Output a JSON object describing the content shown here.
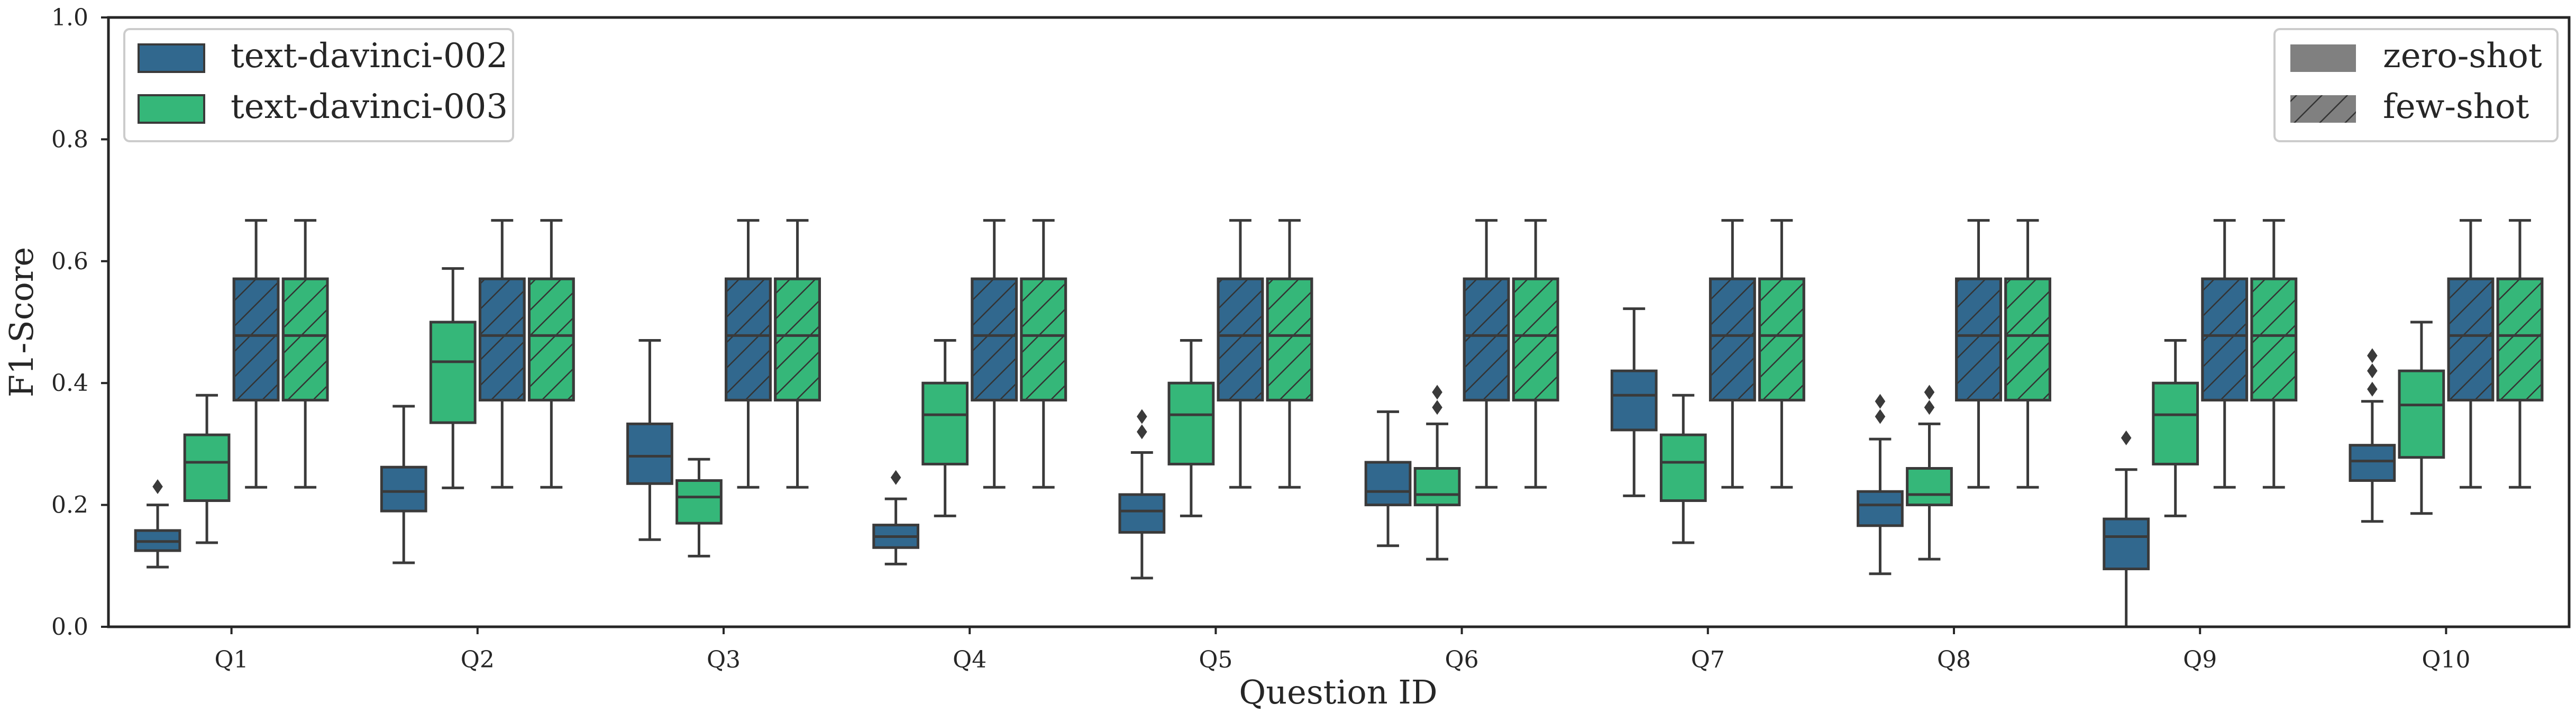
{
  "chart_data": {
    "type": "boxplot",
    "xlabel": "Question ID",
    "ylabel": "F1-Score",
    "ylim": [
      0,
      1.0
    ],
    "yticks": [
      "0.0",
      "0.2",
      "0.4",
      "0.6",
      "0.8",
      "1.0"
    ],
    "categories": [
      "Q1",
      "Q2",
      "Q3",
      "Q4",
      "Q5",
      "Q6",
      "Q7",
      "Q8",
      "Q9",
      "Q10"
    ],
    "grid": false,
    "legend_models": {
      "placement": "top-left",
      "entries": [
        {
          "label": "text-davinci-002",
          "color": "#31688e"
        },
        {
          "label": "text-davinci-003",
          "color": "#35b779"
        }
      ]
    },
    "legend_modes": {
      "placement": "top-right",
      "entries": [
        {
          "label": "zero-shot",
          "pattern": "solid"
        },
        {
          "label": "few-shot",
          "pattern": "hatched"
        }
      ]
    },
    "series": [
      {
        "name": "text-davinci-002",
        "mode": "zero-shot",
        "color": "#31688e",
        "hatched": false,
        "boxes": [
          {
            "whislo": 0.098,
            "q1": 0.125,
            "med": 0.14,
            "q3": 0.158,
            "whishi": 0.2,
            "fliers": [
              0.23
            ]
          },
          {
            "whislo": 0.105,
            "q1": 0.19,
            "med": 0.222,
            "q3": 0.262,
            "whishi": 0.362,
            "fliers": []
          },
          {
            "whislo": 0.143,
            "q1": 0.235,
            "med": 0.28,
            "q3": 0.333,
            "whishi": 0.47,
            "fliers": []
          },
          {
            "whislo": 0.103,
            "q1": 0.13,
            "med": 0.148,
            "q3": 0.167,
            "whishi": 0.21,
            "fliers": [
              0.245
            ]
          },
          {
            "whislo": 0.08,
            "q1": 0.155,
            "med": 0.19,
            "q3": 0.217,
            "whishi": 0.286,
            "fliers": [
              0.32,
              0.345
            ]
          },
          {
            "whislo": 0.133,
            "q1": 0.2,
            "med": 0.222,
            "q3": 0.27,
            "whishi": 0.353,
            "fliers": []
          },
          {
            "whislo": 0.215,
            "q1": 0.323,
            "med": 0.38,
            "q3": 0.42,
            "whishi": 0.522,
            "fliers": []
          },
          {
            "whislo": 0.087,
            "q1": 0.166,
            "med": 0.2,
            "q3": 0.222,
            "whishi": 0.308,
            "fliers": [
              0.345,
              0.37
            ]
          },
          {
            "whislo": 0.0,
            "q1": 0.095,
            "med": 0.148,
            "q3": 0.177,
            "whishi": 0.258,
            "fliers": [
              0.31
            ]
          },
          {
            "whislo": 0.173,
            "q1": 0.24,
            "med": 0.272,
            "q3": 0.298,
            "whishi": 0.37,
            "fliers": [
              0.39,
              0.42,
              0.445
            ]
          }
        ]
      },
      {
        "name": "text-davinci-003",
        "mode": "zero-shot",
        "color": "#35b779",
        "hatched": false,
        "boxes": [
          {
            "whislo": 0.138,
            "q1": 0.207,
            "med": 0.27,
            "q3": 0.315,
            "whishi": 0.38,
            "fliers": []
          },
          {
            "whislo": 0.228,
            "q1": 0.335,
            "med": 0.435,
            "q3": 0.5,
            "whishi": 0.588,
            "fliers": []
          },
          {
            "whislo": 0.116,
            "q1": 0.17,
            "med": 0.213,
            "q3": 0.24,
            "whishi": 0.275,
            "fliers": []
          },
          {
            "whislo": 0.182,
            "q1": 0.267,
            "med": 0.348,
            "q3": 0.4,
            "whishi": 0.47,
            "fliers": []
          },
          {
            "whislo": 0.182,
            "q1": 0.267,
            "med": 0.348,
            "q3": 0.4,
            "whishi": 0.47,
            "fliers": []
          },
          {
            "whislo": 0.111,
            "q1": 0.2,
            "med": 0.217,
            "q3": 0.26,
            "whishi": 0.333,
            "fliers": [
              0.36,
              0.385
            ]
          },
          {
            "whislo": 0.138,
            "q1": 0.207,
            "med": 0.27,
            "q3": 0.315,
            "whishi": 0.38,
            "fliers": []
          },
          {
            "whislo": 0.111,
            "q1": 0.2,
            "med": 0.217,
            "q3": 0.26,
            "whishi": 0.333,
            "fliers": [
              0.36,
              0.385
            ]
          },
          {
            "whislo": 0.182,
            "q1": 0.267,
            "med": 0.348,
            "q3": 0.4,
            "whishi": 0.47,
            "fliers": []
          },
          {
            "whislo": 0.186,
            "q1": 0.278,
            "med": 0.364,
            "q3": 0.42,
            "whishi": 0.5,
            "fliers": []
          }
        ]
      },
      {
        "name": "text-davinci-002",
        "mode": "few-shot",
        "color": "#31688e",
        "hatched": true,
        "boxes": [
          {
            "whislo": 0.229,
            "q1": 0.372,
            "med": 0.478,
            "q3": 0.571,
            "whishi": 0.667,
            "fliers": []
          },
          {
            "whislo": 0.229,
            "q1": 0.372,
            "med": 0.478,
            "q3": 0.571,
            "whishi": 0.667,
            "fliers": []
          },
          {
            "whislo": 0.229,
            "q1": 0.372,
            "med": 0.478,
            "q3": 0.571,
            "whishi": 0.667,
            "fliers": []
          },
          {
            "whislo": 0.229,
            "q1": 0.372,
            "med": 0.478,
            "q3": 0.571,
            "whishi": 0.667,
            "fliers": []
          },
          {
            "whislo": 0.229,
            "q1": 0.372,
            "med": 0.478,
            "q3": 0.571,
            "whishi": 0.667,
            "fliers": []
          },
          {
            "whislo": 0.229,
            "q1": 0.372,
            "med": 0.478,
            "q3": 0.571,
            "whishi": 0.667,
            "fliers": []
          },
          {
            "whislo": 0.229,
            "q1": 0.372,
            "med": 0.478,
            "q3": 0.571,
            "whishi": 0.667,
            "fliers": []
          },
          {
            "whislo": 0.229,
            "q1": 0.372,
            "med": 0.478,
            "q3": 0.571,
            "whishi": 0.667,
            "fliers": []
          },
          {
            "whislo": 0.229,
            "q1": 0.372,
            "med": 0.478,
            "q3": 0.571,
            "whishi": 0.667,
            "fliers": []
          },
          {
            "whislo": 0.229,
            "q1": 0.372,
            "med": 0.478,
            "q3": 0.571,
            "whishi": 0.667,
            "fliers": []
          }
        ]
      },
      {
        "name": "text-davinci-003",
        "mode": "few-shot",
        "color": "#35b779",
        "hatched": true,
        "boxes": [
          {
            "whislo": 0.229,
            "q1": 0.372,
            "med": 0.478,
            "q3": 0.571,
            "whishi": 0.667,
            "fliers": []
          },
          {
            "whislo": 0.229,
            "q1": 0.372,
            "med": 0.478,
            "q3": 0.571,
            "whishi": 0.667,
            "fliers": []
          },
          {
            "whislo": 0.229,
            "q1": 0.372,
            "med": 0.478,
            "q3": 0.571,
            "whishi": 0.667,
            "fliers": []
          },
          {
            "whislo": 0.229,
            "q1": 0.372,
            "med": 0.478,
            "q3": 0.571,
            "whishi": 0.667,
            "fliers": []
          },
          {
            "whislo": 0.229,
            "q1": 0.372,
            "med": 0.478,
            "q3": 0.571,
            "whishi": 0.667,
            "fliers": []
          },
          {
            "whislo": 0.229,
            "q1": 0.372,
            "med": 0.478,
            "q3": 0.571,
            "whishi": 0.667,
            "fliers": []
          },
          {
            "whislo": 0.229,
            "q1": 0.372,
            "med": 0.478,
            "q3": 0.571,
            "whishi": 0.667,
            "fliers": []
          },
          {
            "whislo": 0.229,
            "q1": 0.372,
            "med": 0.478,
            "q3": 0.571,
            "whishi": 0.667,
            "fliers": []
          },
          {
            "whislo": 0.229,
            "q1": 0.372,
            "med": 0.478,
            "q3": 0.571,
            "whishi": 0.667,
            "fliers": []
          },
          {
            "whislo": 0.229,
            "q1": 0.372,
            "med": 0.478,
            "q3": 0.571,
            "whishi": 0.667,
            "fliers": []
          }
        ]
      }
    ]
  }
}
